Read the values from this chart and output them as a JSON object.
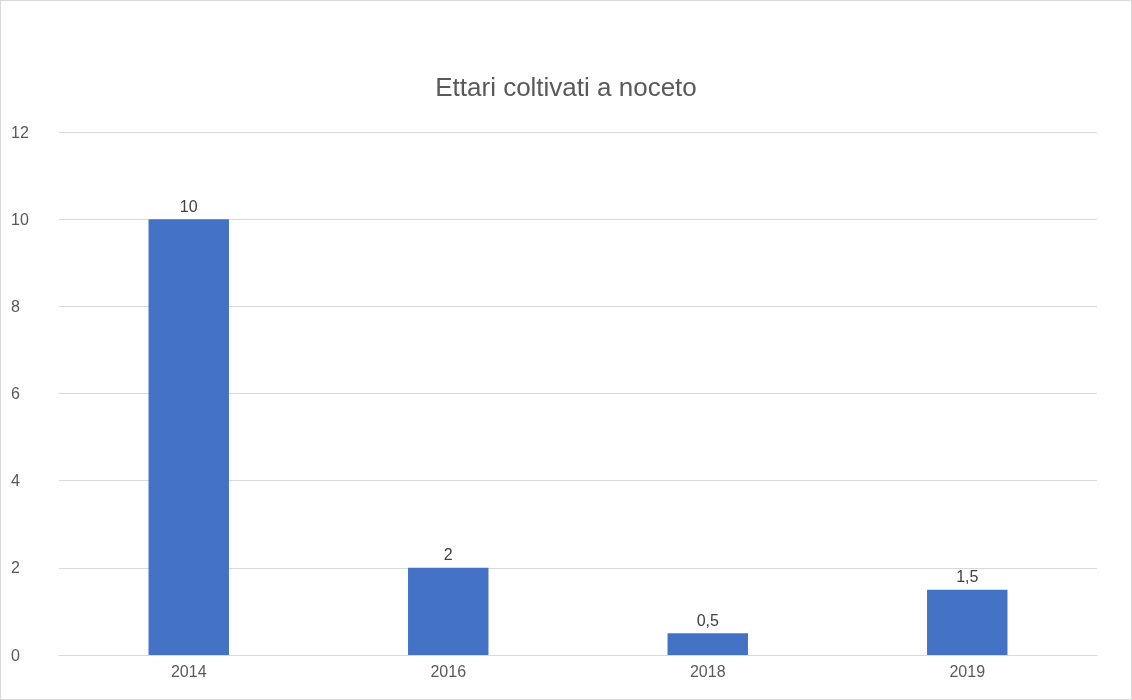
{
  "chart_data": {
    "type": "bar",
    "title": "Ettari coltivati a noceto",
    "categories": [
      "2014",
      "2016",
      "2018",
      "2019"
    ],
    "values": [
      10,
      2,
      0.5,
      1.5
    ],
    "value_labels": [
      "10",
      "2",
      "0,5",
      "1,5"
    ],
    "color": "#4472c4",
    "ylim": [
      0,
      12
    ],
    "yticks": [
      0,
      2,
      4,
      6,
      8,
      10,
      12
    ],
    "grid": "y"
  }
}
